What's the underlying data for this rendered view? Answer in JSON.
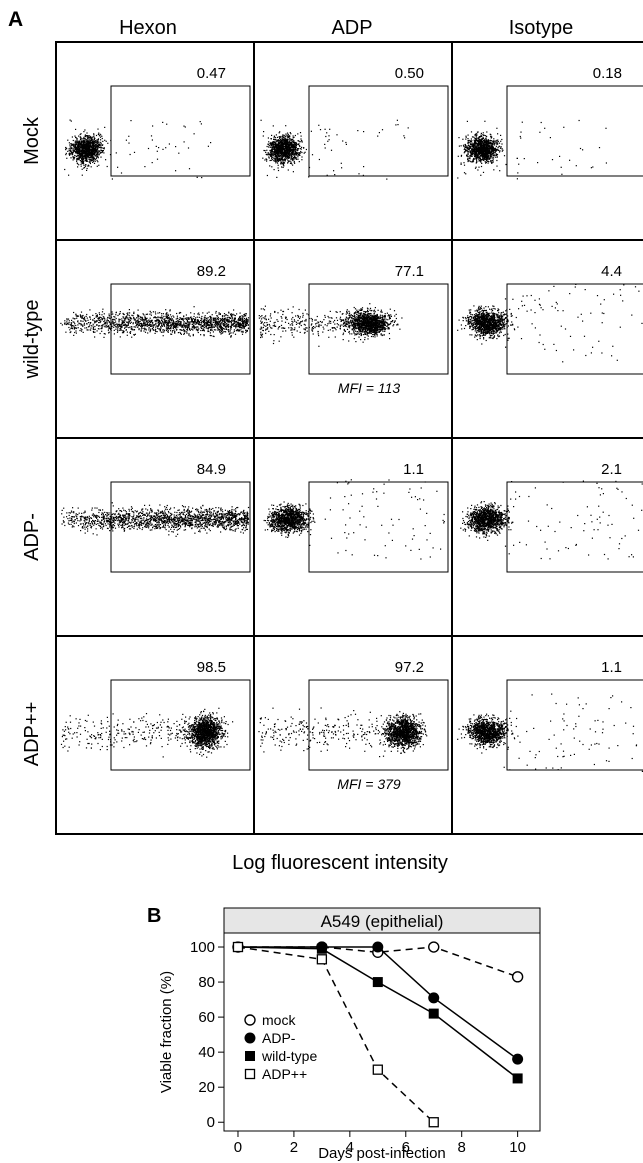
{
  "panel_a": {
    "label": "A",
    "columns": [
      "Hexon",
      "ADP",
      "Isotype"
    ],
    "rows": [
      "Mock",
      "wild-type",
      "ADP-",
      "ADP++"
    ],
    "xlabel": "Log fluorescent intensity"
  },
  "panel_b": {
    "label": "B"
  },
  "chart_data": [
    {
      "type": "scatter",
      "title": "",
      "xlabel": "Log fluorescent intensity",
      "ylabel": "",
      "rows": [
        "Mock",
        "wild-type",
        "ADP-",
        "ADP++"
      ],
      "columns": [
        "Hexon",
        "ADP",
        "Isotype"
      ],
      "gate_percent": [
        [
          0.47,
          0.5,
          0.18
        ],
        [
          89.2,
          77.1,
          4.4
        ],
        [
          84.9,
          1.1,
          2.1
        ],
        [
          98.5,
          97.2,
          1.1
        ]
      ],
      "gate_labels": [
        [
          "0.47",
          "0.50",
          "0.18"
        ],
        [
          "89.2",
          "77.1",
          "4.4"
        ],
        [
          "84.9",
          "1.1",
          "2.1"
        ],
        [
          "98.5",
          "97.2",
          "1.1"
        ]
      ],
      "annotations": [
        {
          "row": "wild-type",
          "column": "ADP",
          "text": "MFI = 113"
        },
        {
          "row": "ADP++",
          "column": "ADP",
          "text": "MFI = 379"
        }
      ]
    },
    {
      "type": "line",
      "title": "A549 (epithelial)",
      "xlabel": "Days post-infection",
      "ylabel": "Viable fraction (%)",
      "xlim": [
        -0.5,
        10.8
      ],
      "ylim": [
        -5,
        108
      ],
      "xticks": [
        0,
        2,
        4,
        6,
        8,
        10
      ],
      "yticks": [
        0,
        20,
        40,
        60,
        80,
        100
      ],
      "legend_position": "bottom-left",
      "series": [
        {
          "name": "mock",
          "marker": "open-circle",
          "line": "dashed",
          "x": [
            0,
            3,
            5,
            7,
            10
          ],
          "y": [
            100,
            100,
            97,
            100,
            83
          ]
        },
        {
          "name": "ADP-",
          "marker": "filled-circle",
          "line": "solid",
          "x": [
            0,
            3,
            5,
            7,
            10
          ],
          "y": [
            100,
            100,
            100,
            71,
            36
          ]
        },
        {
          "name": "wild-type",
          "marker": "filled-square",
          "line": "solid",
          "x": [
            0,
            3,
            5,
            7,
            10
          ],
          "y": [
            100,
            99,
            80,
            62,
            25
          ]
        },
        {
          "name": "ADP++",
          "marker": "open-square",
          "line": "dashed",
          "x": [
            0,
            3,
            5,
            7
          ],
          "y": [
            100,
            93,
            30,
            0
          ]
        }
      ]
    }
  ]
}
